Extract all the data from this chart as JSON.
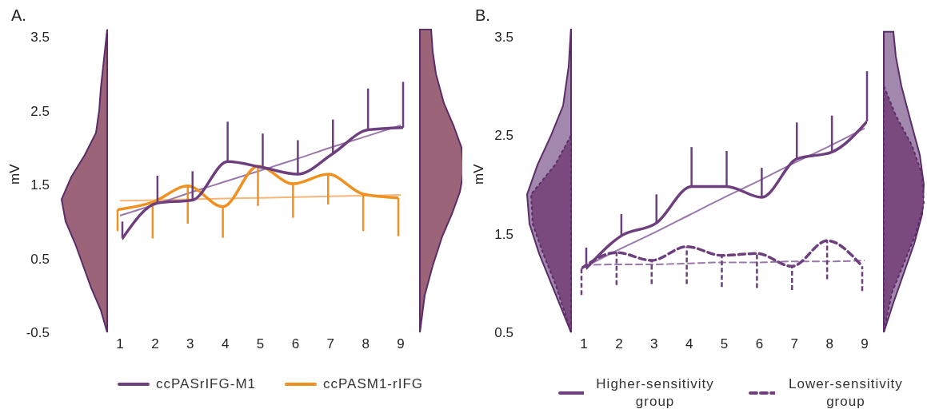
{
  "chart_data": [
    {
      "type": "line",
      "title": "A.",
      "ylabel": "mV",
      "x": [
        1,
        2,
        3,
        4,
        5,
        6,
        7,
        8,
        9
      ],
      "xlim": [
        1,
        9
      ],
      "xticks": [
        1,
        2,
        3,
        4,
        5,
        6,
        7,
        8,
        9
      ],
      "ylim": [
        -0.5,
        3.5
      ],
      "yticks": [
        -0.5,
        0.5,
        1.5,
        2.5,
        3.5
      ],
      "legend": "bottom",
      "series": [
        {
          "name": "ccPASrIFG-M1",
          "color": "#6e3f7e",
          "values": [
            0.77,
            1.25,
            1.29,
            1.81,
            1.73,
            1.64,
            1.92,
            2.24,
            2.27
          ],
          "errors": [
            [
              0.77,
              1.0
            ],
            [
              1.25,
              1.62
            ],
            [
              1.29,
              1.68
            ],
            [
              1.81,
              2.35
            ],
            [
              1.73,
              2.19
            ],
            [
              1.64,
              2.1
            ],
            [
              1.92,
              2.38
            ],
            [
              2.24,
              2.8
            ],
            [
              2.27,
              2.89
            ]
          ]
        },
        {
          "name": "ccPASM1-rIFG",
          "color": "#f0901e",
          "values": [
            1.16,
            1.26,
            1.48,
            1.2,
            1.75,
            1.51,
            1.64,
            1.37,
            1.32
          ],
          "errors": [
            [
              0.87,
              1.16
            ],
            [
              0.77,
              1.26
            ],
            [
              0.97,
              1.48
            ],
            [
              0.78,
              1.2
            ],
            [
              1.21,
              1.75
            ],
            [
              1.05,
              1.51
            ],
            [
              1.23,
              1.64
            ],
            [
              0.87,
              1.37
            ],
            [
              0.8,
              1.32
            ]
          ]
        },
        {
          "type": "line",
          "color": "#9a78aa",
          "values": [
            1.08,
            1.23,
            1.39,
            1.54,
            1.69,
            1.84,
            2.0,
            2.15,
            2.3
          ]
        },
        {
          "type": "line",
          "color": "#f7b57a",
          "values": [
            1.28,
            1.29,
            1.3,
            1.31,
            1.32,
            1.33,
            1.34,
            1.35,
            1.36
          ]
        }
      ]
    },
    {
      "type": "line",
      "title": "B.",
      "ylabel": "mV",
      "x": [
        1,
        2,
        3,
        4,
        5,
        6,
        7,
        8,
        9
      ],
      "xlim": [
        1,
        9
      ],
      "xticks": [
        1,
        2,
        3,
        4,
        5,
        6,
        7,
        8,
        9
      ],
      "ylim": [
        0.5,
        3.5
      ],
      "yticks": [
        0.5,
        1.5,
        2.5,
        3.5
      ],
      "legend": "bottom",
      "series": [
        {
          "name": "Higher-sensitivity group",
          "color": "#6e3f7e",
          "values": [
            1.15,
            1.48,
            1.61,
            1.98,
            1.98,
            1.87,
            2.26,
            2.33,
            2.64
          ],
          "errors": [
            [
              1.15,
              1.36
            ],
            [
              1.48,
              1.7
            ],
            [
              1.61,
              1.9
            ],
            [
              1.98,
              2.38
            ],
            [
              1.98,
              2.34
            ],
            [
              1.87,
              2.17
            ],
            [
              2.26,
              2.63
            ],
            [
              2.33,
              2.7
            ],
            [
              2.64,
              3.15
            ]
          ]
        },
        {
          "name": "Lower-sensitivity group",
          "color": "#6e3f7e",
          "line_style": "dashed",
          "values": [
            1.15,
            1.31,
            1.23,
            1.37,
            1.28,
            1.3,
            1.17,
            1.43,
            1.17
          ],
          "errors": [
            [
              0.88,
              1.15
            ],
            [
              0.98,
              1.31
            ],
            [
              0.99,
              1.23
            ],
            [
              0.99,
              1.37
            ],
            [
              0.96,
              1.28
            ],
            [
              0.95,
              1.3
            ],
            [
              0.93,
              1.17
            ],
            [
              1.04,
              1.43
            ],
            [
              0.92,
              1.17
            ]
          ]
        },
        {
          "type": "line",
          "color": "#9a78aa",
          "values": [
            1.16,
            1.34,
            1.51,
            1.69,
            1.87,
            2.04,
            2.22,
            2.39,
            2.57
          ]
        },
        {
          "type": "line",
          "color": "#9a78aa",
          "line_style": "dashed",
          "values": [
            1.18,
            1.19,
            1.19,
            1.2,
            1.21,
            1.21,
            1.22,
            1.22,
            1.23
          ]
        }
      ]
    }
  ]
}
